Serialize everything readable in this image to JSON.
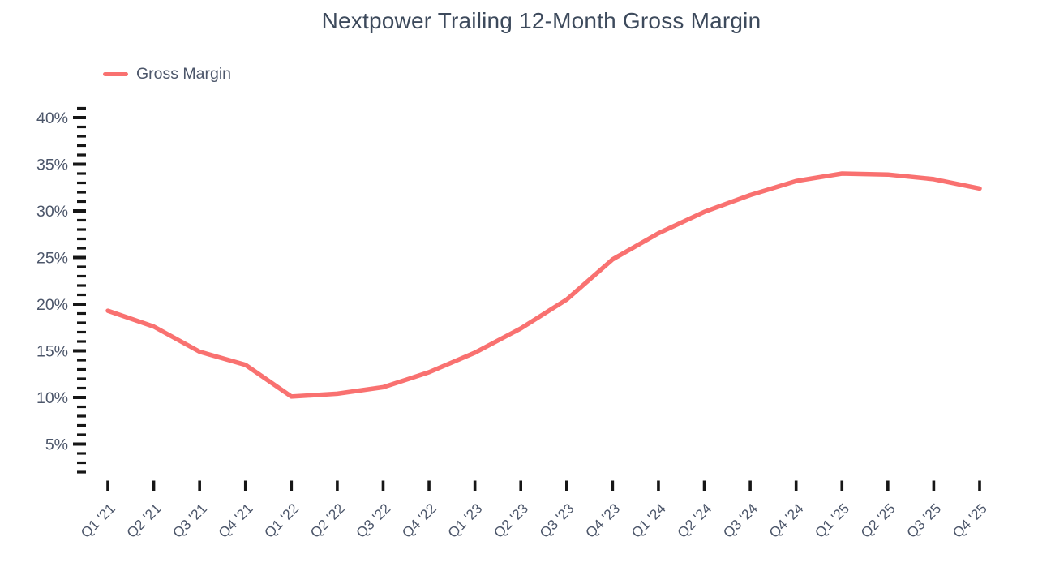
{
  "title": "Nextpower Trailing 12-Month Gross Margin",
  "legend": {
    "label": "Gross Margin",
    "position": "top-left"
  },
  "colors": {
    "line": "#F97170",
    "title_text": "#3D4A5C",
    "axis_label_text": "#4C566A",
    "tick_mark": "#161616",
    "background": "#FFFFFF"
  },
  "chart_data": {
    "type": "line",
    "title": "Nextpower Trailing 12-Month Gross Margin",
    "xlabel": "",
    "ylabel": "",
    "categories": [
      "Q1 '21",
      "Q2 '21",
      "Q3 '21",
      "Q4 '21",
      "Q1 '22",
      "Q2 '22",
      "Q3 '22",
      "Q4 '22",
      "Q1 '23",
      "Q2 '23",
      "Q3 '23",
      "Q4 '23",
      "Q1 '24",
      "Q2 '24",
      "Q3 '24",
      "Q4 '24",
      "Q1 '25",
      "Q2 '25",
      "Q3 '25",
      "Q4 '25"
    ],
    "series": [
      {
        "name": "Gross Margin",
        "color": "#F97170",
        "values": [
          19.3,
          17.6,
          14.9,
          13.5,
          10.1,
          10.4,
          11.1,
          12.7,
          14.8,
          17.4,
          20.5,
          24.8,
          27.6,
          29.9,
          31.7,
          33.2,
          34.0,
          33.9,
          33.4,
          32.4
        ]
      }
    ],
    "y_major_ticks": [
      5,
      10,
      15,
      20,
      25,
      30,
      35,
      40
    ],
    "y_major_tick_labels": [
      "5%",
      "10%",
      "15%",
      "20%",
      "25%",
      "30%",
      "35%",
      "40%"
    ],
    "y_minor_tick_step": 1,
    "y_minor_tick_range": [
      2,
      41
    ],
    "y_unit": "%",
    "ylim": [
      0,
      42
    ],
    "grid": false,
    "legend_position": "top-left",
    "x_label_rotation_deg": -45
  }
}
